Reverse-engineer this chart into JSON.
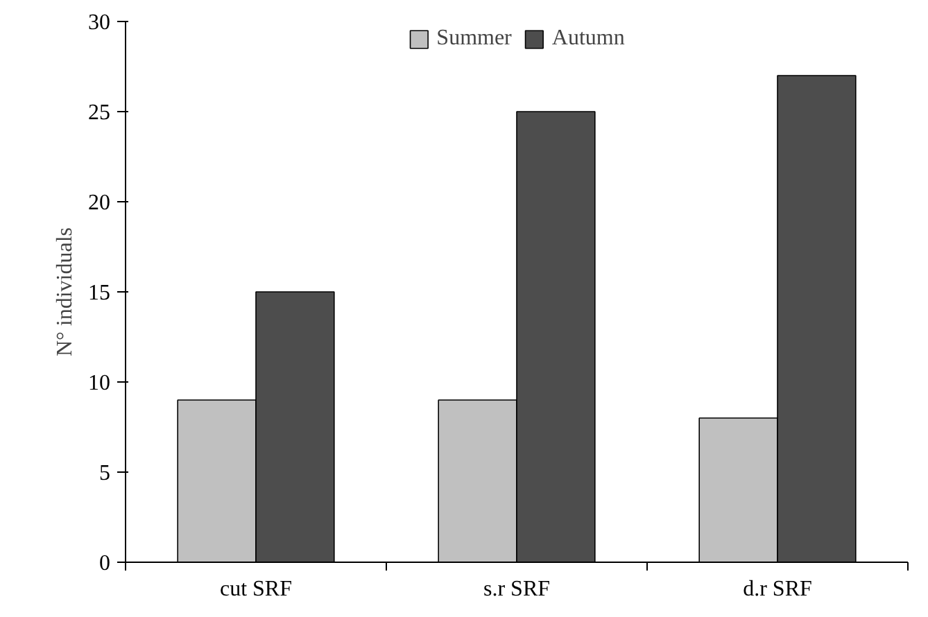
{
  "chart_data": {
    "type": "bar",
    "ylabel": "N° individuals",
    "categories": [
      "cut SRF",
      "s.r SRF",
      "d.r SRF"
    ],
    "series": [
      {
        "name": "Summer",
        "color": "#c0c0c0",
        "values": [
          9,
          9,
          8
        ]
      },
      {
        "name": "Autumn",
        "color": "#4d4d4d",
        "values": [
          15,
          25,
          27
        ]
      }
    ],
    "ylim": [
      0,
      30
    ],
    "yticks": [
      0,
      5,
      10,
      15,
      20,
      25,
      30
    ],
    "grid": false,
    "legend": "top"
  }
}
